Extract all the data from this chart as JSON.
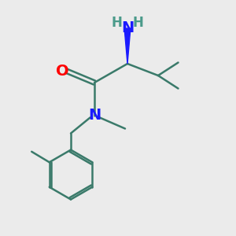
{
  "bg_color": "#ebebeb",
  "bond_color": "#3a7a6a",
  "bond_lw": 1.8,
  "N_color": "#1a1aff",
  "O_color": "#ff0000",
  "H_color": "#4a9a8a",
  "fig_size": [
    3.0,
    3.0
  ],
  "dpi": 100,
  "xlim": [
    0,
    10
  ],
  "ylim": [
    0,
    10
  ]
}
